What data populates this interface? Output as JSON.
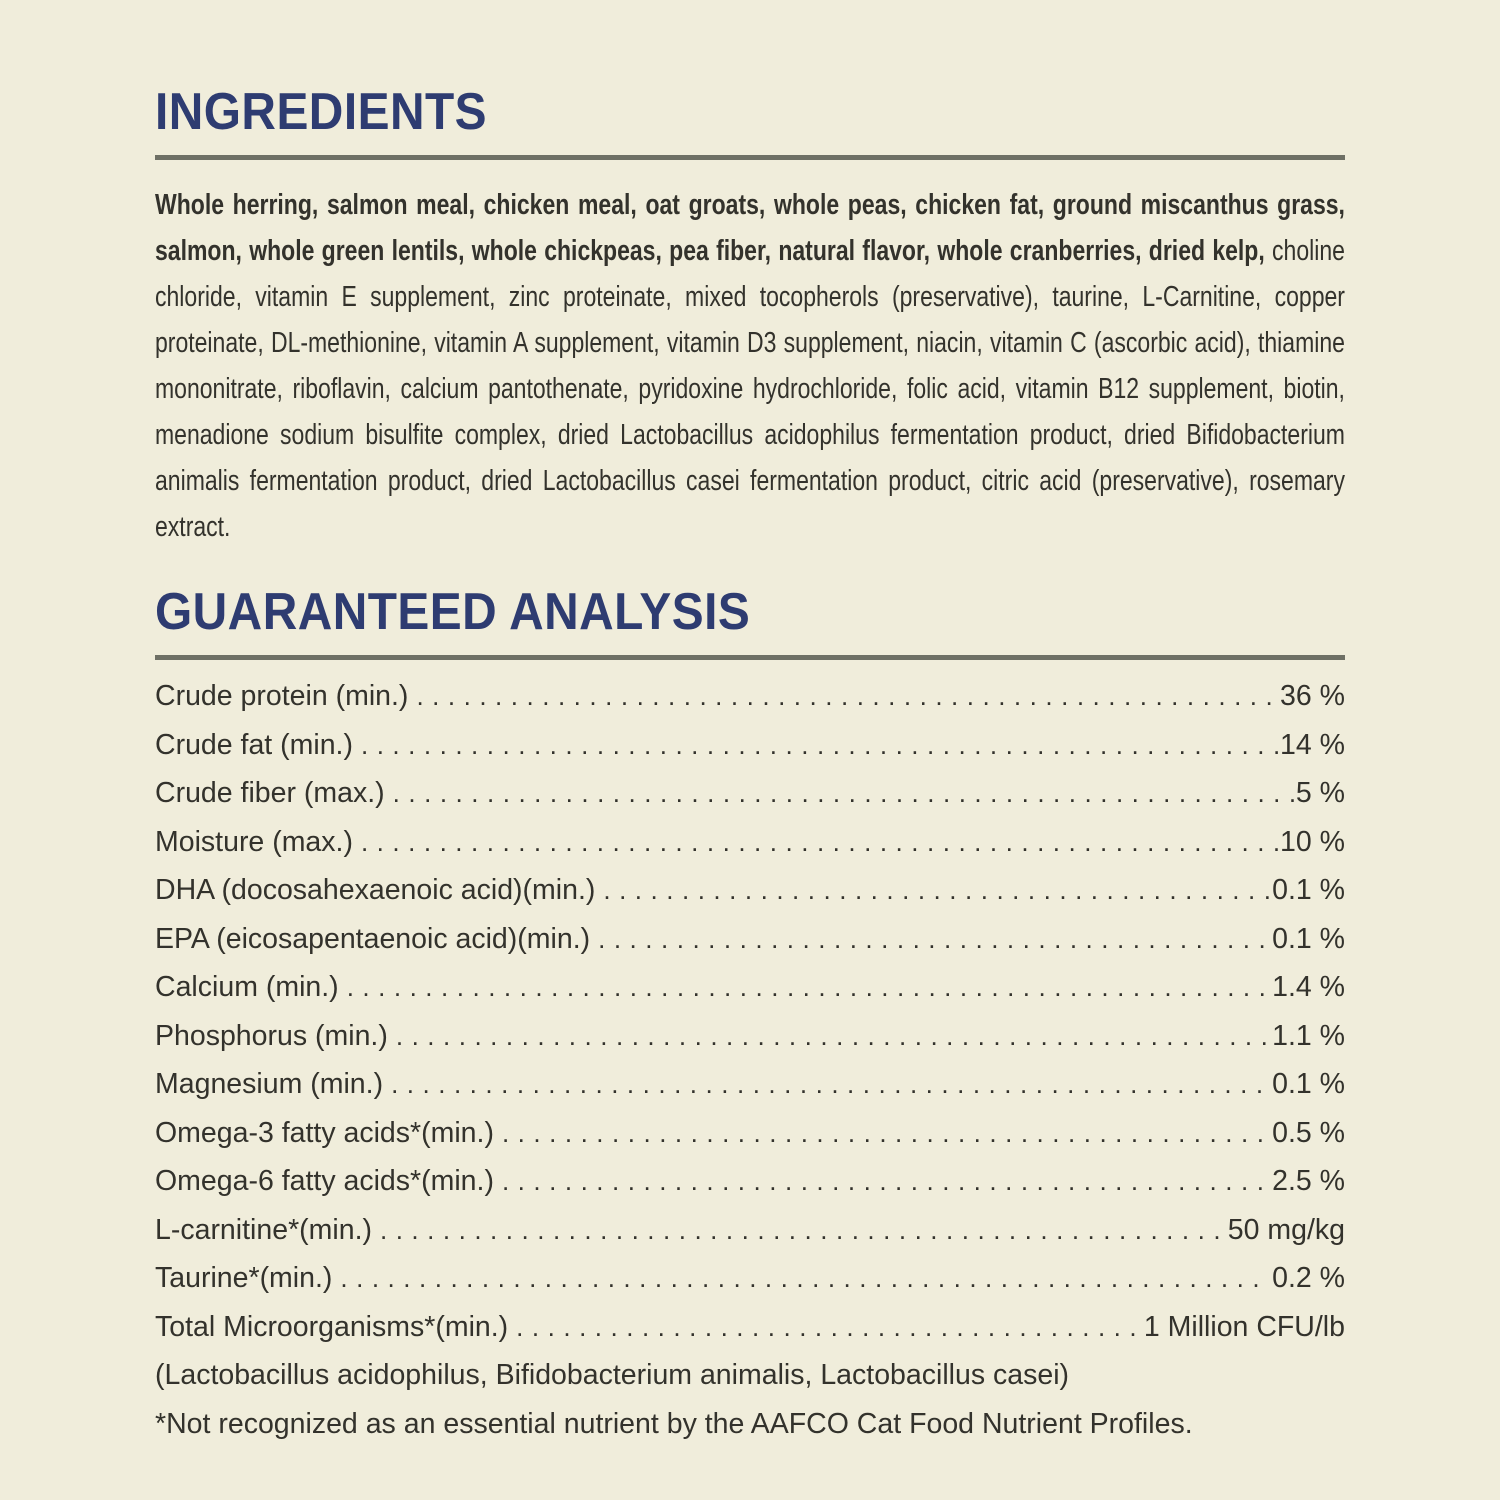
{
  "label": {
    "background_color": "#f0eddb",
    "text_color": "#33322c",
    "heading_color": "#2e3c71",
    "rule_color": "#6e7065"
  },
  "ingredients": {
    "title": "INGREDIENTS",
    "primary_bold": "Whole herring, salmon meal, chicken meal, oat groats, whole peas, chicken fat, ground miscanthus grass, salmon, whole green lentils, whole chickpeas, pea fiber, natural flavor, whole cranberries, dried kelp,",
    "secondary": " choline chloride, vitamin E supplement, zinc proteinate, mixed tocopherols (preservative), taurine, L-Carnitine, copper proteinate, DL-methionine, vitamin A supplement, vitamin D3 supplement, niacin, vitamin C (ascorbic acid), thiamine mononitrate, riboflavin, calcium pantothenate, pyridoxine hydrochloride, folic acid, vitamin B12 supplement, biotin, menadione sodium bisulfite complex, dried Lactobacillus acidophilus fermentation product, dried Bifidobacterium animalis fermentation product, dried Lactobacillus casei fermentation product, citric acid (preservative), rosemary extract."
  },
  "guaranteed_analysis": {
    "title": "GUARANTEED ANALYSIS",
    "rows": [
      {
        "label": "Crude protein (min.)",
        "value": "36 %"
      },
      {
        "label": "Crude fat (min.)",
        "value": "14 %"
      },
      {
        "label": "Crude fiber (max.)",
        "value": "5 %"
      },
      {
        "label": "Moisture (max.)",
        "value": "10 %"
      },
      {
        "label": "DHA (docosahexaenoic acid)(min.)",
        "value": "0.1 %"
      },
      {
        "label": "EPA (eicosapentaenoic acid)(min.)",
        "value": "0.1 %"
      },
      {
        "label": "Calcium (min.)",
        "value": "1.4 %"
      },
      {
        "label": "Phosphorus (min.)",
        "value": "1.1 %"
      },
      {
        "label": "Magnesium (min.)",
        "value": "0.1 %"
      },
      {
        "label": "Omega-3 fatty acids*(min.)",
        "value": "0.5 %"
      },
      {
        "label": "Omega-6 fatty acids*(min.)",
        "value": "2.5 %"
      },
      {
        "label": "L-carnitine*(min.)",
        "value": "50 mg/kg"
      },
      {
        "label": "Taurine*(min.)",
        "value": "0.2 %"
      },
      {
        "label": "Total Microorganisms*(min.)",
        "value": "1 Million CFU/lb"
      }
    ],
    "continuation": "(Lactobacillus acidophilus, Bifidobacterium animalis, Lactobacillus casei)",
    "footnote": "*Not recognized as an essential nutrient by the AAFCO Cat Food Nutrient Profiles."
  }
}
